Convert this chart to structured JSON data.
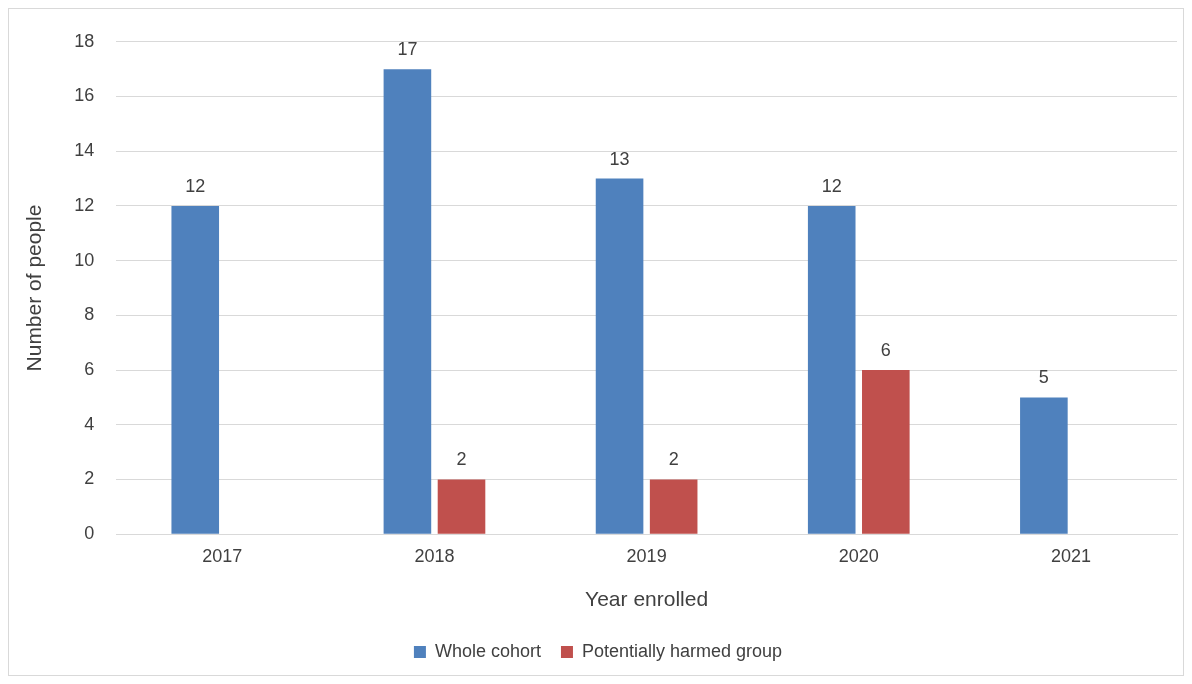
{
  "chart_data": {
    "type": "bar",
    "xlabel": "Year enrolled",
    "ylabel": "Number of people",
    "categories": [
      "2017",
      "2018",
      "2019",
      "2020",
      "2021"
    ],
    "series": [
      {
        "name": "Whole cohort",
        "color": "#4f81bd",
        "values": [
          12,
          17,
          13,
          12,
          5
        ]
      },
      {
        "name": "Potentially harmed group",
        "color": "#c0504d",
        "values": [
          null,
          2,
          2,
          6,
          null
        ]
      }
    ],
    "ylim": [
      0,
      18
    ],
    "yticks": [
      0,
      2,
      4,
      6,
      8,
      10,
      12,
      14,
      16,
      18
    ],
    "grid": "y",
    "legend": "bottom",
    "data_labels": true
  }
}
